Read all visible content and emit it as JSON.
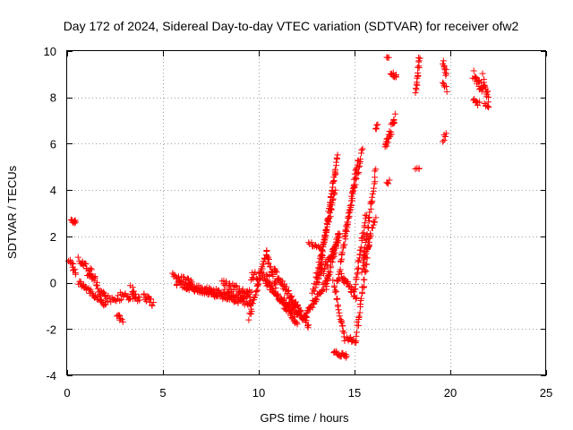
{
  "chart_data": {
    "type": "scatter",
    "title": "Day 172 of 2024, Sidereal Day-to-day VTEC variation (SDTVAR) for receiver ofw2",
    "xlabel": "GPS time / hours",
    "ylabel": "SDTVAR / TECUs",
    "xlim": [
      0,
      25
    ],
    "ylim": [
      -4,
      10
    ],
    "xticks": [
      0,
      5,
      10,
      15,
      20,
      25
    ],
    "yticks": [
      -4,
      -2,
      0,
      2,
      4,
      6,
      8,
      10
    ],
    "xtick_labels": [
      "0",
      "5",
      "10",
      "15",
      "20",
      "25"
    ],
    "ytick_labels": [
      "-4",
      "-2",
      "0",
      "2",
      "4",
      "6",
      "8",
      "10"
    ],
    "grid": true,
    "marker": "+",
    "color": "#ff0000",
    "series": [
      {
        "name": "SDTVAR",
        "segments": [
          {
            "x0": 0.1,
            "x1": 0.45,
            "y0": 0.9,
            "y1": 0.5,
            "n": 12,
            "jitter": 0.15
          },
          {
            "x0": 0.2,
            "x1": 0.45,
            "y0": 2.7,
            "y1": 2.6,
            "n": 10,
            "jitter": 0.08
          },
          {
            "x0": 0.6,
            "x1": 1.3,
            "y0": 1.1,
            "y1": 0.2,
            "n": 20,
            "jitter": 0.2
          },
          {
            "x0": 0.6,
            "x1": 2.0,
            "y0": 0.0,
            "y1": -0.9,
            "n": 35,
            "jitter": 0.15
          },
          {
            "x0": 1.1,
            "x1": 2.0,
            "y0": 0.6,
            "y1": -0.7,
            "n": 25,
            "jitter": 0.2
          },
          {
            "x0": 2.0,
            "x1": 3.6,
            "y0": -0.7,
            "y1": -0.5,
            "n": 30,
            "jitter": 0.2
          },
          {
            "x0": 2.6,
            "x1": 2.9,
            "y0": -1.4,
            "y1": -1.7,
            "n": 8,
            "jitter": 0.1
          },
          {
            "x0": 3.3,
            "x1": 3.8,
            "y0": -0.3,
            "y1": -0.8,
            "n": 12,
            "jitter": 0.2
          },
          {
            "x0": 4.0,
            "x1": 4.5,
            "y0": -0.6,
            "y1": -0.9,
            "n": 14,
            "jitter": 0.15
          },
          {
            "x0": 5.5,
            "x1": 6.5,
            "y0": 0.3,
            "y1": 0.0,
            "n": 22,
            "jitter": 0.15
          },
          {
            "x0": 5.7,
            "x1": 9.6,
            "y0": 0.0,
            "y1": -0.9,
            "n": 90,
            "jitter": 0.15
          },
          {
            "x0": 6.2,
            "x1": 9.5,
            "y0": -0.2,
            "y1": -0.6,
            "n": 70,
            "jitter": 0.15
          },
          {
            "x0": 8.1,
            "x1": 9.6,
            "y0": 0.0,
            "y1": -0.5,
            "n": 30,
            "jitter": 0.15
          },
          {
            "x0": 9.5,
            "x1": 10.4,
            "y0": -1.5,
            "y1": 1.3,
            "n": 35,
            "jitter": 0.15
          },
          {
            "x0": 9.6,
            "x1": 10.6,
            "y0": 0.3,
            "y1": 0.2,
            "n": 25,
            "jitter": 0.2
          },
          {
            "x0": 10.4,
            "x1": 10.9,
            "y0": 1.3,
            "y1": -0.2,
            "n": 20,
            "jitter": 0.2
          },
          {
            "x0": 10.4,
            "x1": 12.0,
            "y0": 0.0,
            "y1": -1.7,
            "n": 60,
            "jitter": 0.15
          },
          {
            "x0": 10.8,
            "x1": 12.6,
            "y0": 0.5,
            "y1": -1.8,
            "n": 60,
            "jitter": 0.15
          },
          {
            "x0": 11.2,
            "x1": 12.5,
            "y0": -0.7,
            "y1": -1.6,
            "n": 40,
            "jitter": 0.15
          },
          {
            "x0": 12.5,
            "x1": 13.6,
            "y0": -1.3,
            "y1": 0.1,
            "n": 35,
            "jitter": 0.15
          },
          {
            "x0": 12.6,
            "x1": 13.3,
            "y0": 1.7,
            "y1": 1.5,
            "n": 12,
            "jitter": 0.1
          },
          {
            "x0": 12.8,
            "x1": 14.2,
            "y0": -0.4,
            "y1": 1.9,
            "n": 45,
            "jitter": 0.15
          },
          {
            "x0": 13.0,
            "x1": 14.0,
            "y0": 0.2,
            "y1": 4.0,
            "n": 45,
            "jitter": 0.15
          },
          {
            "x0": 13.2,
            "x1": 14.1,
            "y0": 0.6,
            "y1": 5.4,
            "n": 55,
            "jitter": 0.15
          },
          {
            "x0": 13.5,
            "x1": 14.2,
            "y0": -0.2,
            "y1": 2.2,
            "n": 30,
            "jitter": 0.15
          },
          {
            "x0": 13.9,
            "x1": 14.5,
            "y0": 0.0,
            "y1": -2.5,
            "n": 25,
            "jitter": 0.15
          },
          {
            "x0": 13.9,
            "x1": 14.6,
            "y0": -3.0,
            "y1": -3.2,
            "n": 18,
            "jitter": 0.1
          },
          {
            "x0": 14.1,
            "x1": 15.2,
            "y0": 0.0,
            "y1": 5.4,
            "n": 50,
            "jitter": 0.15
          },
          {
            "x0": 14.3,
            "x1": 15.1,
            "y0": 0.3,
            "y1": -0.6,
            "n": 25,
            "jitter": 0.15
          },
          {
            "x0": 14.5,
            "x1": 15.4,
            "y0": 2.0,
            "y1": 5.7,
            "n": 35,
            "jitter": 0.15
          },
          {
            "x0": 14.6,
            "x1": 15.1,
            "y0": -2.4,
            "y1": -2.5,
            "n": 12,
            "jitter": 0.1
          },
          {
            "x0": 15.0,
            "x1": 15.6,
            "y0": -0.3,
            "y1": 2.9,
            "n": 30,
            "jitter": 0.15
          },
          {
            "x0": 15.1,
            "x1": 15.8,
            "y0": -2.2,
            "y1": 1.9,
            "n": 35,
            "jitter": 0.15
          },
          {
            "x0": 15.4,
            "x1": 16.1,
            "y0": 0.5,
            "y1": 4.8,
            "n": 35,
            "jitter": 0.15
          },
          {
            "x0": 15.5,
            "x1": 16.1,
            "y0": 1.0,
            "y1": 2.8,
            "n": 20,
            "jitter": 0.15
          },
          {
            "x0": 16.1,
            "x1": 16.2,
            "y0": 6.6,
            "y1": 6.8,
            "n": 5,
            "jitter": 0.1
          },
          {
            "x0": 16.6,
            "x1": 17.1,
            "y0": 5.8,
            "y1": 7.1,
            "n": 25,
            "jitter": 0.2
          },
          {
            "x0": 16.7,
            "x1": 16.8,
            "y0": 4.3,
            "y1": 4.4,
            "n": 4,
            "jitter": 0.1
          },
          {
            "x0": 16.7,
            "x1": 16.8,
            "y0": 9.7,
            "y1": 9.7,
            "n": 3,
            "jitter": 0.05
          },
          {
            "x0": 16.9,
            "x1": 17.2,
            "y0": 9.1,
            "y1": 8.9,
            "n": 10,
            "jitter": 0.1
          },
          {
            "x0": 18.2,
            "x1": 18.4,
            "y0": 8.3,
            "y1": 9.8,
            "n": 18,
            "jitter": 0.2
          },
          {
            "x0": 18.2,
            "x1": 18.4,
            "y0": 4.9,
            "y1": 4.9,
            "n": 4,
            "jitter": 0.05
          },
          {
            "x0": 19.6,
            "x1": 19.8,
            "y0": 9.5,
            "y1": 9.0,
            "n": 10,
            "jitter": 0.15
          },
          {
            "x0": 19.6,
            "x1": 19.8,
            "y0": 8.7,
            "y1": 8.3,
            "n": 6,
            "jitter": 0.1
          },
          {
            "x0": 19.6,
            "x1": 19.8,
            "y0": 6.1,
            "y1": 6.5,
            "n": 5,
            "jitter": 0.1
          },
          {
            "x0": 21.2,
            "x1": 21.7,
            "y0": 9.0,
            "y1": 8.3,
            "n": 20,
            "jitter": 0.25
          },
          {
            "x0": 21.2,
            "x1": 21.5,
            "y0": 7.9,
            "y1": 7.7,
            "n": 8,
            "jitter": 0.1
          },
          {
            "x0": 21.7,
            "x1": 22.0,
            "y0": 8.8,
            "y1": 8.0,
            "n": 14,
            "jitter": 0.25
          },
          {
            "x0": 21.8,
            "x1": 22.0,
            "y0": 7.7,
            "y1": 7.6,
            "n": 6,
            "jitter": 0.05
          }
        ]
      }
    ]
  }
}
